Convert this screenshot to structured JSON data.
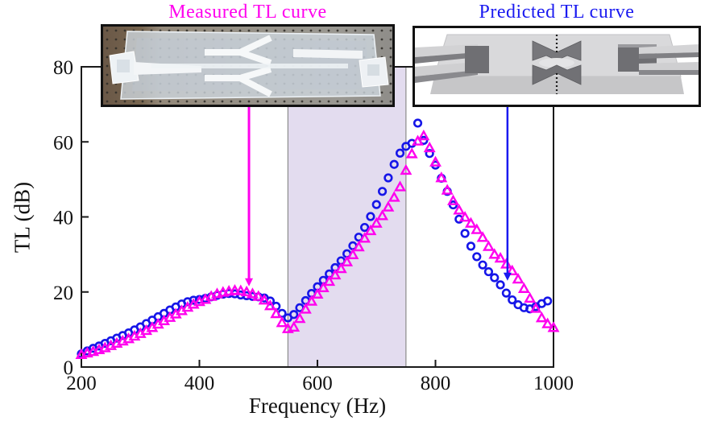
{
  "titles": {
    "measured": "Measured TL curve",
    "predicted": "Predicted TL curve",
    "measured_color": "#ff00ee",
    "predicted_color": "#1a1af0"
  },
  "chart_data": {
    "type": "scatter",
    "xlabel": "Frequency (Hz)",
    "ylabel": "TL (dB)",
    "xlim": [
      200,
      1000
    ],
    "ylim": [
      0,
      80
    ],
    "xticks": [
      200,
      400,
      600,
      800,
      1000
    ],
    "yticks": [
      0,
      20,
      40,
      60,
      80
    ],
    "grid": false,
    "highlight_band": {
      "x_range_hz": [
        550,
        750
      ],
      "fill": "#e3dcef",
      "edge": "#8c8c8c"
    },
    "series": [
      {
        "name": "Predicted TL curve",
        "marker": "circle",
        "color": "#1616e8",
        "x": [
          200,
          210,
          220,
          230,
          240,
          250,
          260,
          270,
          280,
          290,
          300,
          310,
          320,
          330,
          340,
          350,
          360,
          370,
          380,
          390,
          400,
          410,
          420,
          430,
          440,
          450,
          460,
          470,
          480,
          490,
          500,
          510,
          520,
          530,
          540,
          550,
          560,
          570,
          580,
          590,
          600,
          610,
          620,
          630,
          640,
          650,
          660,
          670,
          680,
          690,
          700,
          710,
          720,
          730,
          740,
          750,
          760,
          770,
          780,
          790,
          800,
          810,
          820,
          830,
          840,
          850,
          860,
          870,
          880,
          890,
          900,
          910,
          920,
          930,
          940,
          950,
          960,
          970,
          980,
          990
        ],
        "values": [
          3.5,
          4.3,
          5.0,
          5.6,
          6.3,
          7.0,
          7.7,
          8.4,
          9.1,
          9.9,
          10.7,
          11.6,
          12.5,
          13.4,
          14.3,
          15.2,
          16.0,
          16.8,
          17.4,
          17.8,
          18.0,
          18.3,
          18.7,
          19.1,
          19.4,
          19.6,
          19.5,
          19.2,
          19.0,
          18.8,
          18.7,
          18.4,
          17.6,
          16.2,
          14.3,
          13.1,
          14.0,
          15.8,
          17.7,
          19.6,
          21.4,
          23.1,
          24.8,
          26.5,
          28.3,
          30.2,
          32.3,
          34.6,
          37.2,
          40.1,
          43.3,
          46.8,
          50.4,
          54.0,
          57.0,
          58.8,
          59.6,
          65.0,
          60.4,
          56.9,
          53.8,
          50.3,
          46.8,
          43.2,
          39.4,
          35.6,
          32.2,
          29.4,
          27.2,
          25.4,
          23.8,
          21.9,
          19.7,
          17.9,
          16.6,
          15.8,
          15.5,
          16.1,
          16.9,
          17.6
        ]
      },
      {
        "name": "Measured TL curve",
        "marker": "triangle",
        "color": "#ff00ee",
        "x": [
          200,
          210,
          220,
          230,
          240,
          250,
          260,
          270,
          280,
          290,
          300,
          310,
          320,
          330,
          340,
          350,
          360,
          370,
          380,
          390,
          400,
          410,
          420,
          430,
          440,
          450,
          460,
          470,
          480,
          490,
          500,
          510,
          520,
          530,
          540,
          550,
          560,
          570,
          580,
          590,
          600,
          610,
          620,
          630,
          640,
          650,
          660,
          670,
          680,
          690,
          700,
          710,
          720,
          730,
          740,
          750,
          760,
          770,
          780,
          790,
          800,
          810,
          820,
          830,
          840,
          850,
          860,
          870,
          880,
          890,
          900,
          910,
          920,
          930,
          940,
          950,
          960,
          970,
          980,
          990,
          1000
        ],
        "values": [
          3.3,
          3.7,
          4.1,
          4.6,
          5.1,
          5.7,
          6.3,
          6.9,
          7.5,
          8.2,
          8.9,
          9.7,
          10.5,
          11.4,
          12.3,
          13.2,
          14.1,
          15.0,
          15.9,
          16.7,
          17.4,
          18.0,
          18.8,
          19.5,
          19.9,
          20.2,
          20.4,
          20.3,
          20.0,
          19.5,
          18.8,
          17.8,
          16.3,
          14.2,
          11.8,
          10.2,
          10.6,
          12.9,
          15.4,
          17.5,
          19.4,
          21.1,
          22.8,
          24.5,
          26.2,
          28.0,
          29.9,
          32.0,
          34.3,
          36.3,
          38.3,
          40.3,
          42.6,
          45.2,
          48.0,
          52.4,
          56.8,
          60.2,
          61.6,
          58.4,
          54.6,
          50.4,
          47.1,
          44.3,
          41.8,
          39.9,
          38.3,
          36.6,
          34.5,
          32.1,
          30.0,
          29.0,
          27.4,
          25.6,
          23.4,
          20.9,
          18.3,
          15.6,
          13.1,
          11.5,
          10.5
        ]
      }
    ]
  },
  "annotations": {
    "pointers": [
      {
        "name": "measured-pointer",
        "hz": 484,
        "tip_db": 21.5,
        "color": "#ff00ee",
        "width": 3
      },
      {
        "name": "predicted-pointer",
        "hz": 922,
        "tip_db": 23.0,
        "color": "#1a1af0",
        "width": 2.5
      }
    ]
  }
}
